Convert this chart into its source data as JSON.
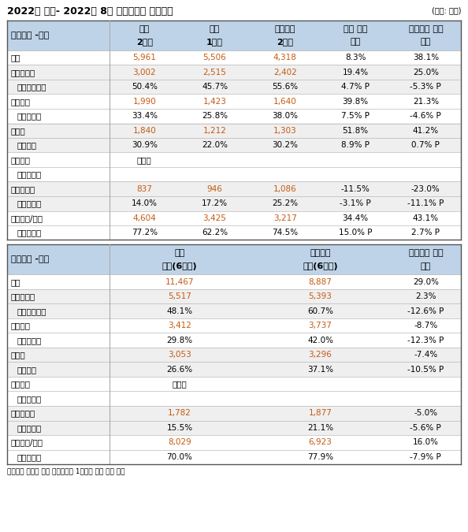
{
  "title": "2022년 실적- 2022년 8월 반기보고서 연결기준",
  "unit_label": "(단위: 억원)",
  "footnote": "증감액은 천만원 단위 반올림으로 1억원대 차이 발생 가능",
  "section1_header": "셀트리온 -분기",
  "section1_col_headers_line1": [
    "당기",
    "전기",
    "전년동기",
    "전기 대비",
    "전년동기 대비"
  ],
  "section1_col_headers_line2": [
    "2분기",
    "1분기",
    "2분기",
    "증감",
    "증감"
  ],
  "section1_rows": [
    {
      "label": "매출",
      "indent": false,
      "values": [
        "5,961",
        "5,506",
        "4,318",
        "8.3%",
        "38.1%"
      ],
      "highlight": false,
      "orange": [
        0,
        1,
        2
      ]
    },
    {
      "label": "매출총이익",
      "indent": false,
      "values": [
        "3,002",
        "2,515",
        "2,402",
        "19.4%",
        "25.0%"
      ],
      "highlight": true,
      "orange": [
        0,
        1,
        2
      ]
    },
    {
      "label": "매출총이익률",
      "indent": true,
      "values": [
        "50.4%",
        "45.7%",
        "55.6%",
        "4.7% P",
        "-5.3% P"
      ],
      "highlight": true,
      "orange": []
    },
    {
      "label": "영업이익",
      "indent": false,
      "values": [
        "1,990",
        "1,423",
        "1,640",
        "39.8%",
        "21.3%"
      ],
      "highlight": false,
      "orange": [
        0,
        1,
        2
      ]
    },
    {
      "label": "영업이익률",
      "indent": true,
      "values": [
        "33.4%",
        "25.8%",
        "38.0%",
        "7.5% P",
        "-4.6% P"
      ],
      "highlight": false,
      "orange": []
    },
    {
      "label": "순이익",
      "indent": false,
      "values": [
        "1,840",
        "1,212",
        "1,303",
        "51.8%",
        "41.2%"
      ],
      "highlight": true,
      "orange": [
        0,
        1,
        2
      ]
    },
    {
      "label": "순이익률",
      "indent": true,
      "values": [
        "30.9%",
        "22.0%",
        "30.2%",
        "8.9% P",
        "0.7% P"
      ],
      "highlight": true,
      "orange": []
    },
    {
      "label": "상품매출",
      "indent": false,
      "values": [
        "미공시",
        "",
        "",
        "",
        ""
      ],
      "highlight": false,
      "orange": []
    },
    {
      "label": "매출액대비",
      "indent": true,
      "values": [
        "",
        "",
        "",
        "",
        ""
      ],
      "highlight": false,
      "orange": []
    },
    {
      "label": "연구개발비",
      "indent": false,
      "values": [
        "837",
        "946",
        "1,086",
        "-11.5%",
        "-23.0%"
      ],
      "highlight": true,
      "orange": [
        0,
        1,
        2
      ]
    },
    {
      "label": "매출액대비",
      "indent": true,
      "values": [
        "14.0%",
        "17.2%",
        "25.2%",
        "-3.1% P",
        "-11.1% P"
      ],
      "highlight": true,
      "orange": []
    },
    {
      "label": "해외매출/수출",
      "indent": false,
      "values": [
        "4,604",
        "3,425",
        "3,217",
        "34.4%",
        "43.1%"
      ],
      "highlight": false,
      "orange": [
        0,
        1,
        2
      ]
    },
    {
      "label": "매출액대비",
      "indent": true,
      "values": [
        "77.2%",
        "62.2%",
        "74.5%",
        "15.0% P",
        "2.7% P"
      ],
      "highlight": false,
      "orange": []
    }
  ],
  "section2_header": "셀트리온 -누적",
  "section2_col_headers_line1": [
    "당기",
    "",
    "전년동기",
    "",
    "전년동기 대비"
  ],
  "section2_col_headers_line2": [
    "누적(6개월)",
    "",
    "누적(6개월)",
    "",
    "증감"
  ],
  "section2_rows": [
    {
      "label": "매출",
      "indent": false,
      "values": [
        "11,467",
        "",
        "8,887",
        "",
        "29.0%"
      ],
      "highlight": false,
      "orange": [
        0,
        2
      ]
    },
    {
      "label": "매출총이익",
      "indent": false,
      "values": [
        "5,517",
        "",
        "5,393",
        "",
        "2.3%"
      ],
      "highlight": true,
      "orange": [
        0,
        2
      ]
    },
    {
      "label": "매출총이익률",
      "indent": true,
      "values": [
        "48.1%",
        "",
        "60.7%",
        "",
        "-12.6% P"
      ],
      "highlight": true,
      "orange": []
    },
    {
      "label": "영업이익",
      "indent": false,
      "values": [
        "3,412",
        "",
        "3,737",
        "",
        "-8.7%"
      ],
      "highlight": false,
      "orange": [
        0,
        2
      ]
    },
    {
      "label": "영업이익률",
      "indent": true,
      "values": [
        "29.8%",
        "",
        "42.0%",
        "",
        "-12.3% P"
      ],
      "highlight": false,
      "orange": []
    },
    {
      "label": "순이익",
      "indent": false,
      "values": [
        "3,053",
        "",
        "3,296",
        "",
        "-7.4%"
      ],
      "highlight": true,
      "orange": [
        0,
        2
      ]
    },
    {
      "label": "순이익률",
      "indent": true,
      "values": [
        "26.6%",
        "",
        "37.1%",
        "",
        "-10.5% P"
      ],
      "highlight": true,
      "orange": []
    },
    {
      "label": "상품매출",
      "indent": false,
      "values": [
        "미공시",
        "",
        "",
        "",
        ""
      ],
      "highlight": false,
      "orange": []
    },
    {
      "label": "매출액대비",
      "indent": true,
      "values": [
        "",
        "",
        "",
        "",
        ""
      ],
      "highlight": false,
      "orange": []
    },
    {
      "label": "연구개발비",
      "indent": false,
      "values": [
        "1,782",
        "",
        "1,877",
        "",
        "-5.0%"
      ],
      "highlight": true,
      "orange": [
        0,
        2
      ]
    },
    {
      "label": "매출액대비",
      "indent": true,
      "values": [
        "15.5%",
        "",
        "21.1%",
        "",
        "-5.6% P"
      ],
      "highlight": true,
      "orange": []
    },
    {
      "label": "해외매출/수출",
      "indent": false,
      "values": [
        "8,029",
        "",
        "6,923",
        "",
        "16.0%"
      ],
      "highlight": false,
      "orange": [
        0,
        2
      ]
    },
    {
      "label": "매출액대비",
      "indent": true,
      "values": [
        "70.0%",
        "",
        "77.9%",
        "",
        "-7.9% P"
      ],
      "highlight": false,
      "orange": []
    }
  ],
  "colors": {
    "header_bg": "#bed3e8",
    "row_highlight": "#efefef",
    "row_normal": "#ffffff",
    "border_heavy": "#555555",
    "border_light": "#aaaaaa",
    "text_black": "#000000",
    "text_orange": "#c55a11"
  },
  "figsize": [
    5.94,
    6.75
  ],
  "dpi": 100,
  "title_fontsize": 9.0,
  "header_fontsize": 8.0,
  "cell_fontsize": 7.5
}
